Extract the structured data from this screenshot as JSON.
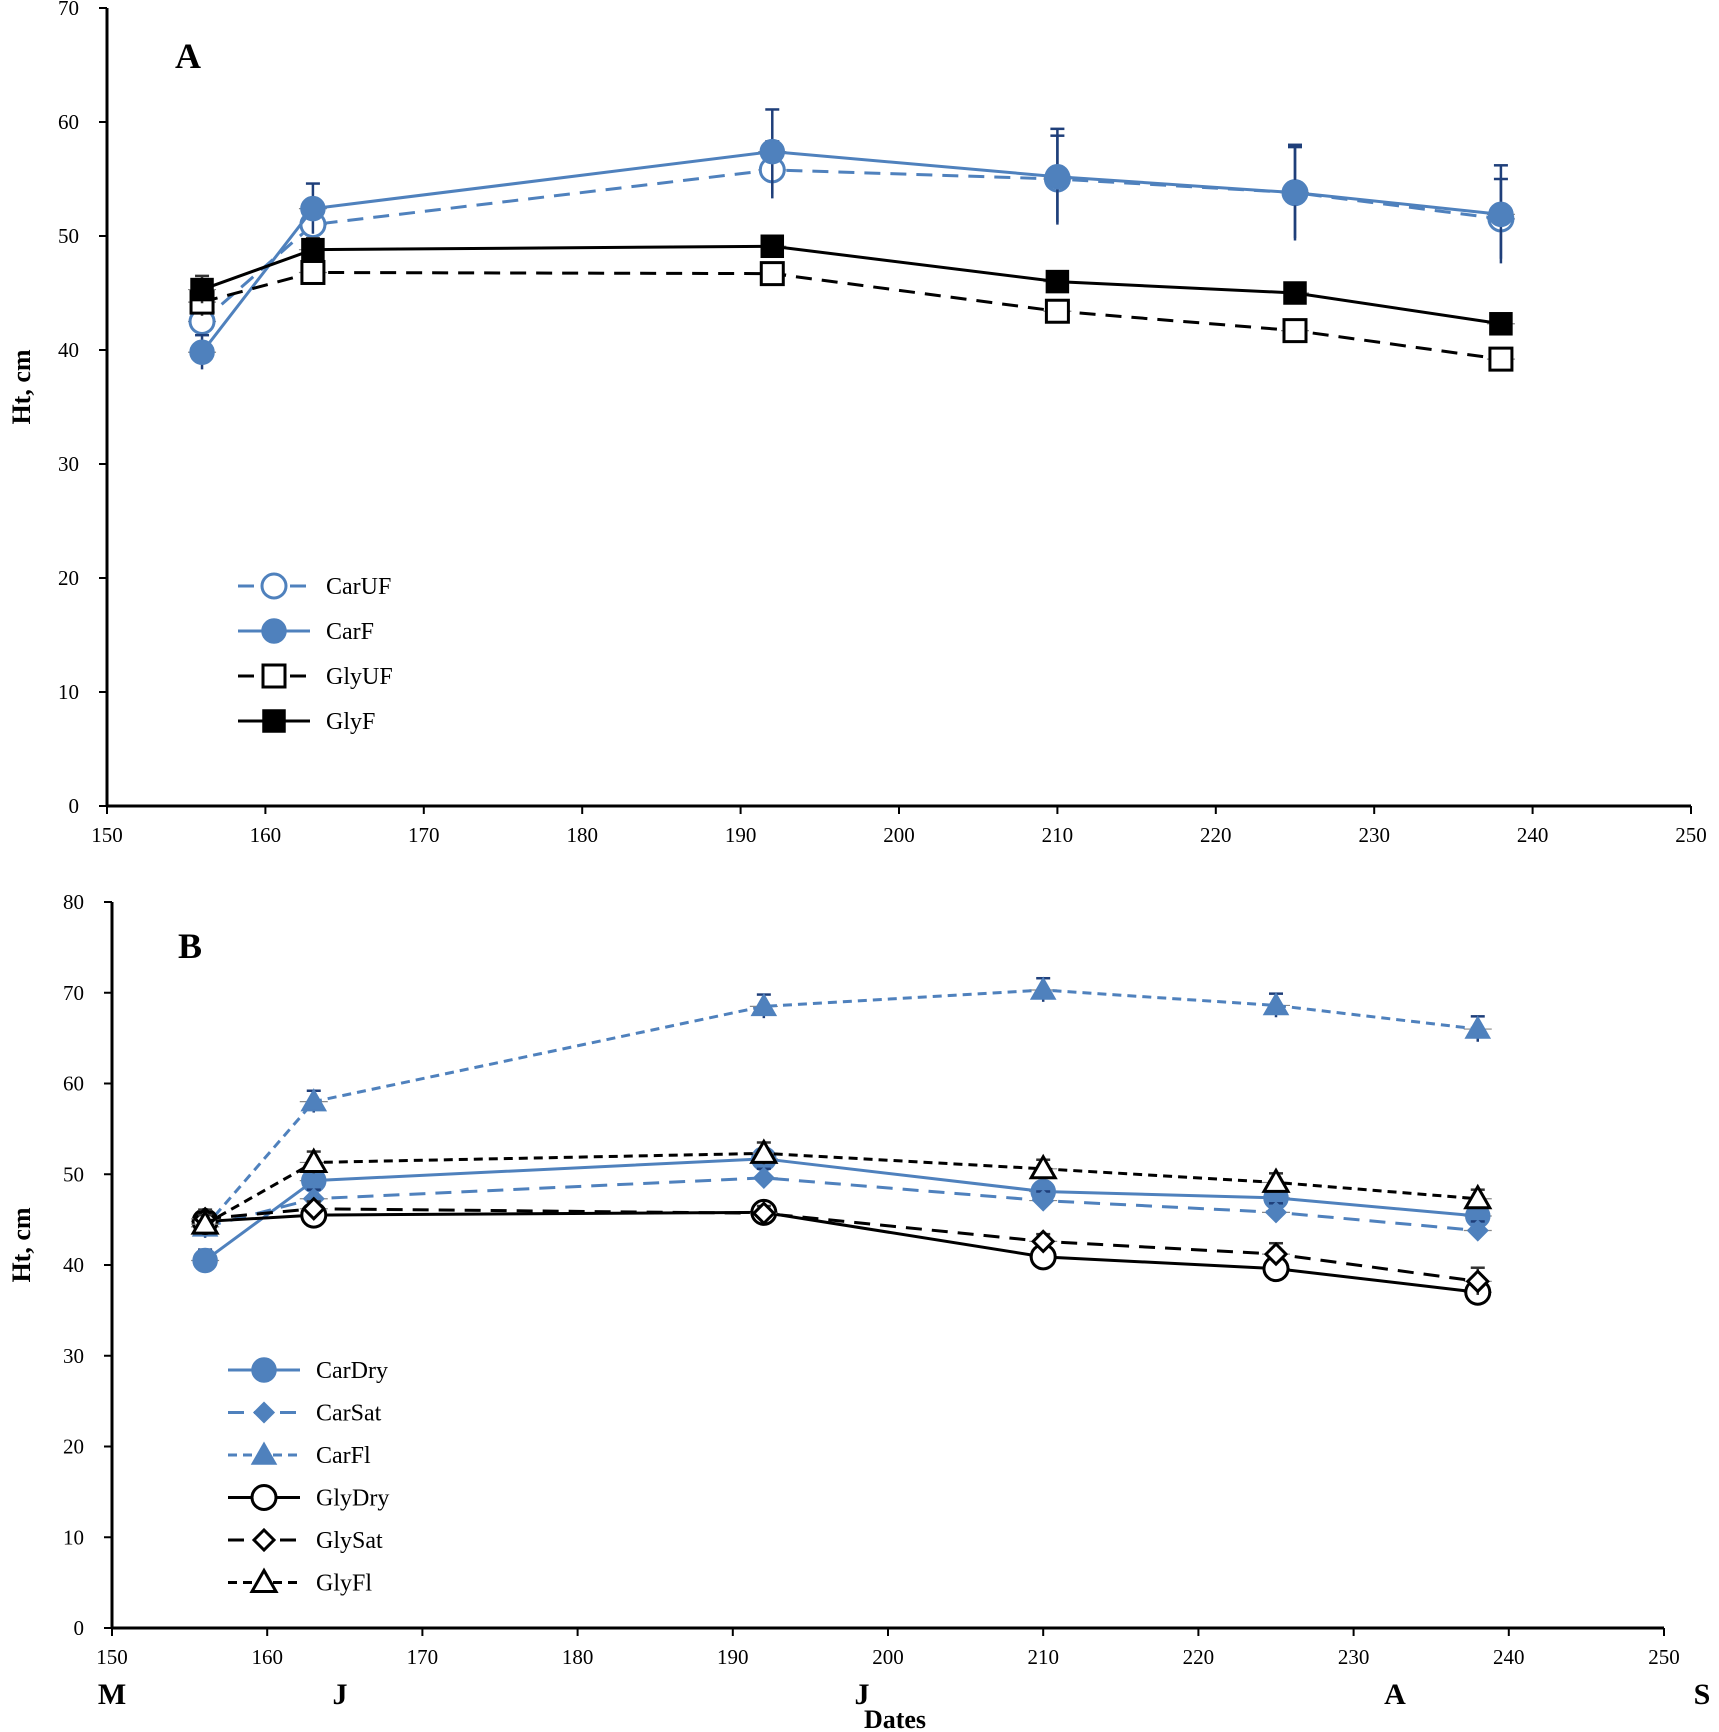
{
  "colors": {
    "blue": "#4f81bd",
    "black": "#000000",
    "errorbar": "#1f3f7a"
  },
  "months": [
    "M",
    "J",
    "J",
    "A",
    "S"
  ],
  "x_title": "Dates",
  "chart_data": [
    {
      "type": "line",
      "panel": "A",
      "ylabel": "Ht, cm",
      "xlabel": "",
      "xlim": [
        150,
        250
      ],
      "ylim": [
        0,
        70
      ],
      "xticks": [
        150,
        160,
        170,
        180,
        190,
        200,
        210,
        220,
        230,
        240,
        250
      ],
      "yticks": [
        0,
        10,
        20,
        30,
        40,
        50,
        60,
        70
      ],
      "legend_position": "lower-left",
      "x": [
        156,
        163,
        192,
        210,
        225,
        238
      ],
      "series": [
        {
          "name": "CarUF",
          "color": "#4f81bd",
          "dash": "long",
          "marker": "circle",
          "filled": false,
          "values": [
            42.5,
            51,
            55.8,
            55,
            53.8,
            51.5
          ],
          "errors": [
            1.2,
            1.5,
            2.5,
            3.8,
            4,
            3.5
          ]
        },
        {
          "name": "CarF",
          "color": "#4f81bd",
          "dash": "solid",
          "marker": "circle",
          "filled": true,
          "values": [
            39.8,
            52.4,
            57.4,
            55.2,
            53.8,
            51.9
          ],
          "errors": [
            1.5,
            2.2,
            3.7,
            4.2,
            4.2,
            4.3
          ]
        },
        {
          "name": "GlyUF",
          "color": "#000000",
          "dash": "long",
          "marker": "square",
          "filled": false,
          "values": [
            44.2,
            46.8,
            46.7,
            43.4,
            41.7,
            39.2
          ],
          "errors": [
            1.2,
            0.8,
            0.8,
            0.8,
            0.8,
            0.6
          ]
        },
        {
          "name": "GlyF",
          "color": "#000000",
          "dash": "solid",
          "marker": "square",
          "filled": true,
          "values": [
            45.3,
            48.8,
            49.1,
            46,
            45,
            42.3
          ],
          "errors": [
            1.2,
            1,
            0.8,
            0.8,
            0.6,
            0.6
          ]
        }
      ]
    },
    {
      "type": "line",
      "panel": "B",
      "ylabel": "Ht, cm",
      "xlabel": "Dates",
      "xlim": [
        150,
        250
      ],
      "ylim": [
        0,
        80
      ],
      "xticks": [
        150,
        160,
        170,
        180,
        190,
        200,
        210,
        220,
        230,
        240,
        250
      ],
      "yticks": [
        0,
        10,
        20,
        30,
        40,
        50,
        60,
        70,
        80
      ],
      "legend_position": "lower-left",
      "x": [
        156,
        163,
        192,
        210,
        225,
        238
      ],
      "series": [
        {
          "name": "CarDry",
          "color": "#4f81bd",
          "dash": "solid",
          "marker": "circle",
          "filled": true,
          "values": [
            40.5,
            49.3,
            51.7,
            48.1,
            47.4,
            45.4
          ],
          "errors": [
            1.2,
            1,
            1,
            1,
            1,
            1
          ]
        },
        {
          "name": "CarSat",
          "color": "#4f81bd",
          "dash": "long",
          "marker": "diamond",
          "filled": true,
          "values": [
            44.2,
            47.3,
            49.6,
            47.1,
            45.8,
            43.8
          ],
          "errors": [
            1,
            1,
            1,
            1,
            1,
            1
          ]
        },
        {
          "name": "CarFl",
          "color": "#4f81bd",
          "dash": "short",
          "marker": "triangle",
          "filled": true,
          "values": [
            44.2,
            58,
            68.5,
            70.3,
            68.6,
            66
          ],
          "errors": [
            1.2,
            1.2,
            1.3,
            1.3,
            1.3,
            1.4
          ]
        },
        {
          "name": "GlyDry",
          "color": "#000000",
          "dash": "solid",
          "marker": "circle",
          "filled": false,
          "values": [
            44.8,
            45.5,
            45.8,
            40.9,
            39.6,
            37
          ],
          "errors": [
            1,
            0.8,
            0.8,
            0.8,
            0.8,
            0.8
          ]
        },
        {
          "name": "GlySat",
          "color": "#000000",
          "dash": "long",
          "marker": "diamond",
          "filled": false,
          "values": [
            45.1,
            46.2,
            45.7,
            42.6,
            41.2,
            38.2
          ],
          "errors": [
            1,
            0.8,
            0.8,
            0.8,
            1.2,
            1.5
          ]
        },
        {
          "name": "GlyFl",
          "color": "#000000",
          "dash": "short",
          "marker": "triangle",
          "filled": false,
          "values": [
            44.5,
            51.3,
            52.3,
            50.6,
            49.1,
            47.3
          ],
          "errors": [
            1,
            1.2,
            1.2,
            1,
            1,
            1
          ]
        }
      ]
    }
  ]
}
